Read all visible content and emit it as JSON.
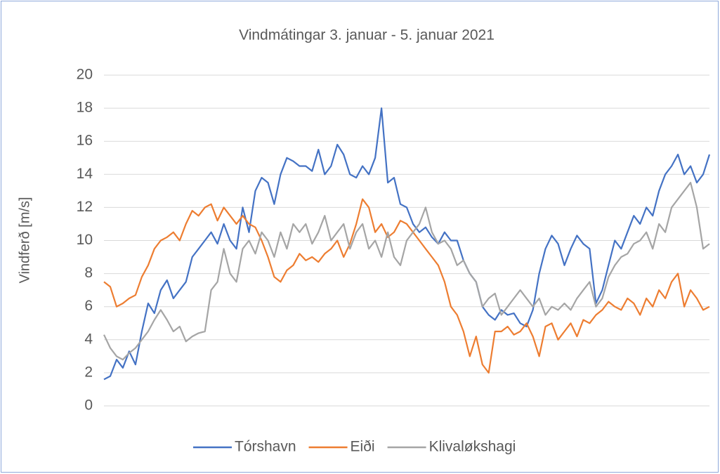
{
  "chart_data": {
    "type": "line",
    "title": "Vindmátingar 3. januar - 5. januar 2021",
    "y_label": "Vindferð [m/s]",
    "ylim": [
      0,
      20
    ],
    "yticks": [
      0,
      2,
      4,
      6,
      8,
      10,
      12,
      14,
      16,
      18,
      20
    ],
    "grid": true,
    "legend": "bottom",
    "series": [
      {
        "name": "Tórshavn",
        "color": "#4472c4",
        "values": [
          1.6,
          1.8,
          2.8,
          2.3,
          3.3,
          2.5,
          4.5,
          6.2,
          5.6,
          7.0,
          7.6,
          6.5,
          7.0,
          7.5,
          9.0,
          9.5,
          10.0,
          10.5,
          9.8,
          11.0,
          10.0,
          9.5,
          12.0,
          10.5,
          13.0,
          13.8,
          13.5,
          12.2,
          14.0,
          15.0,
          14.8,
          14.5,
          14.5,
          14.2,
          15.5,
          14.0,
          14.5,
          15.8,
          15.2,
          14.0,
          13.8,
          14.5,
          14.0,
          15.0,
          18.0,
          13.5,
          13.8,
          12.2,
          12.0,
          11.0,
          10.5,
          10.8,
          10.2,
          9.8,
          10.5,
          10.0,
          10.0,
          8.8,
          8.0,
          7.5,
          6.0,
          5.5,
          5.2,
          5.8,
          5.5,
          5.6,
          5.0,
          4.8,
          5.8,
          8.0,
          9.5,
          10.3,
          9.8,
          8.5,
          9.5,
          10.3,
          9.8,
          9.5,
          6.2,
          7.0,
          8.5,
          10.0,
          9.5,
          10.5,
          11.5,
          11.0,
          12.0,
          11.5,
          13.0,
          14.0,
          14.5,
          15.2,
          14.0,
          14.5,
          13.5,
          14.0,
          15.2
        ]
      },
      {
        "name": "Eiði",
        "color": "#ed7d31",
        "values": [
          7.5,
          7.2,
          6.0,
          6.2,
          6.5,
          6.7,
          7.8,
          8.5,
          9.5,
          10.0,
          10.2,
          10.5,
          10.0,
          11.0,
          11.8,
          11.5,
          12.0,
          12.2,
          11.2,
          12.0,
          11.5,
          11.0,
          11.5,
          11.0,
          10.8,
          10.0,
          9.0,
          7.8,
          7.5,
          8.2,
          8.5,
          9.2,
          8.8,
          9.0,
          8.7,
          9.2,
          9.5,
          10.0,
          9.0,
          9.8,
          11.0,
          12.5,
          12.0,
          10.5,
          11.0,
          10.2,
          10.5,
          11.2,
          11.0,
          10.5,
          10.0,
          9.5,
          9.0,
          8.5,
          7.5,
          6.0,
          5.5,
          4.5,
          3.0,
          4.2,
          2.5,
          2.0,
          4.5,
          4.5,
          4.8,
          4.3,
          4.5,
          5.0,
          4.2,
          3.0,
          4.8,
          5.0,
          4.0,
          4.5,
          5.0,
          4.2,
          5.2,
          5.0,
          5.5,
          5.8,
          6.3,
          6.0,
          5.8,
          6.5,
          6.2,
          5.5,
          6.5,
          6.0,
          7.0,
          6.5,
          7.5,
          8.0,
          6.0,
          7.0,
          6.5,
          5.8,
          6.0
        ]
      },
      {
        "name": "Klivaløkshagi",
        "color": "#a5a5a5",
        "values": [
          4.3,
          3.5,
          3.0,
          2.8,
          3.2,
          3.5,
          4.0,
          4.5,
          5.2,
          5.8,
          5.2,
          4.5,
          4.8,
          3.9,
          4.2,
          4.4,
          4.5,
          7.0,
          7.5,
          9.5,
          8.0,
          7.5,
          9.5,
          10.0,
          9.2,
          10.5,
          10.0,
          9.0,
          10.5,
          9.5,
          11.0,
          10.5,
          11.0,
          9.8,
          10.5,
          11.5,
          10.0,
          10.5,
          11.0,
          9.5,
          10.5,
          11.0,
          9.5,
          10.0,
          9.0,
          10.5,
          9.0,
          8.5,
          10.0,
          10.5,
          11.0,
          12.0,
          10.5,
          9.8,
          10.0,
          9.5,
          8.5,
          8.8,
          8.0,
          7.5,
          6.0,
          6.5,
          6.8,
          5.5,
          6.0,
          6.5,
          7.0,
          6.5,
          6.0,
          6.5,
          5.5,
          6.0,
          5.8,
          6.2,
          5.8,
          6.5,
          7.0,
          7.5,
          6.0,
          6.5,
          7.8,
          8.5,
          9.0,
          9.2,
          9.8,
          10.0,
          10.5,
          9.5,
          11.0,
          10.5,
          12.0,
          12.5,
          13.0,
          13.5,
          12.0,
          9.5,
          9.8
        ]
      }
    ]
  }
}
